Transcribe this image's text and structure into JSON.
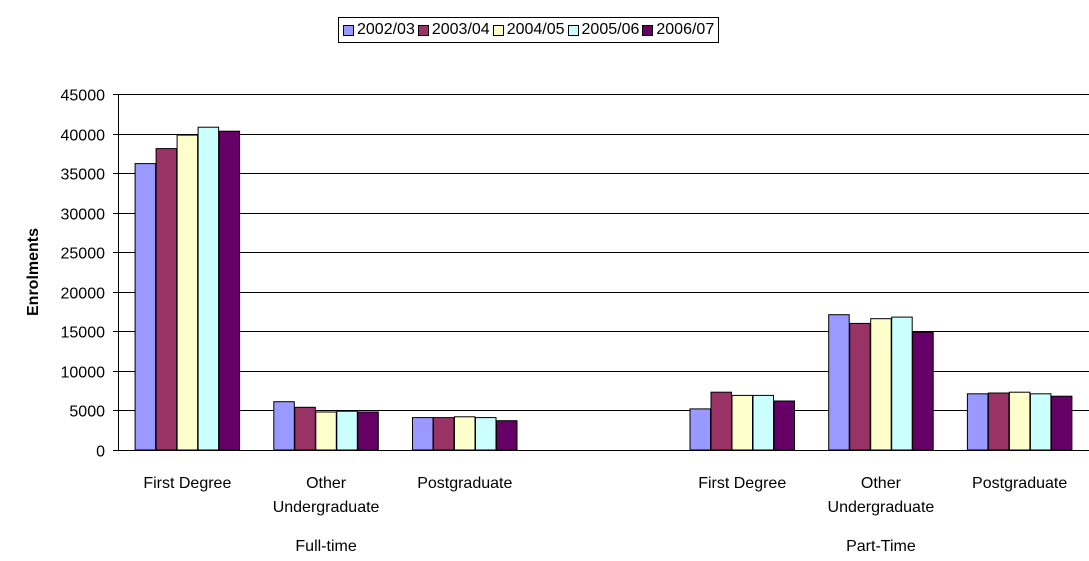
{
  "chart_data": {
    "type": "bar",
    "ylabel": "Enrolments",
    "xlabel": "",
    "ylim": [
      0,
      45000
    ],
    "yticks": [
      0,
      5000,
      10000,
      15000,
      20000,
      25000,
      30000,
      35000,
      40000,
      45000
    ],
    "grid": true,
    "legend_position": "top-center",
    "groups": [
      {
        "name": "Full-time",
        "categories": [
          "First Degree",
          "Other Undergraduate",
          "Postgraduate"
        ]
      },
      {
        "name": "Part-Time",
        "categories": [
          "First Degree",
          "Other Undergraduate",
          "Postgraduate"
        ]
      }
    ],
    "category_lines": {
      "First Degree": [
        "First Degree"
      ],
      "Other Undergraduate": [
        "Other",
        "Undergraduate"
      ],
      "Postgraduate": [
        "Postgraduate"
      ]
    },
    "series": [
      {
        "name": "2002/03",
        "color": "#9999FF",
        "values": [
          36200,
          6100,
          4100,
          null,
          5200,
          17100,
          7100
        ]
      },
      {
        "name": "2003/04",
        "color": "#993366",
        "values": [
          38100,
          5400,
          4100,
          null,
          7300,
          16000,
          7200
        ]
      },
      {
        "name": "2004/05",
        "color": "#FFFFCC",
        "values": [
          39800,
          4800,
          4200,
          null,
          6900,
          16600,
          7300
        ]
      },
      {
        "name": "2005/06",
        "color": "#CCFFFF",
        "values": [
          40800,
          4900,
          4100,
          null,
          6900,
          16800,
          7100
        ]
      },
      {
        "name": "2006/07",
        "color": "#660066",
        "values": [
          40300,
          4800,
          3700,
          null,
          6200,
          14900,
          6800
        ]
      }
    ],
    "slots": [
      "Full-time|First Degree",
      "Full-time|Other Undergraduate",
      "Full-time|Postgraduate",
      "",
      "Part-Time|First Degree",
      "Part-Time|Other Undergraduate",
      "Part-Time|Postgraduate"
    ]
  }
}
